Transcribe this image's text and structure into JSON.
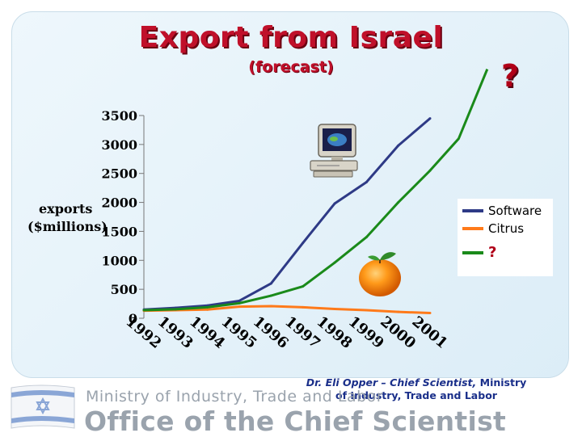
{
  "title": "Export from Israel",
  "subtitle": "(forecast)",
  "question_mark": "?",
  "ylabel_line1": "exports",
  "ylabel_line2": "($millions)",
  "credit": {
    "name": "Dr.  Eli  Opper – Chief Scientist,",
    "rest1": " Ministry",
    "line2": "of Industry, Trade and Labor"
  },
  "ministry_banner": {
    "line1": "Ministry of Industry, Trade and Labor",
    "line2": "Office of the Chief Scientist"
  },
  "icons": [
    "israel-flag-icon",
    "computer-icon",
    "orange-icon"
  ],
  "chart_data": {
    "type": "line",
    "title": "Export from Israel",
    "subtitle": "(forecast)",
    "ylabel": "exports ($millions)",
    "categories": [
      "1992",
      "1993",
      "1994",
      "1995",
      "1996",
      "1997",
      "1998",
      "1999",
      "2000",
      "2001"
    ],
    "yticks": [
      0,
      500,
      1000,
      1500,
      2000,
      2500,
      3000,
      3500
    ],
    "ylim": [
      0,
      3500
    ],
    "legend_position": "right",
    "series": [
      {
        "name": "Software",
        "color": "#2e3a86",
        "values": [
          150,
          180,
          220,
          300,
          600,
          1300,
          1980,
          2350,
          2980,
          3450
        ]
      },
      {
        "name": "Citrus",
        "color": "#ff7a1a",
        "values": [
          130,
          140,
          150,
          200,
          210,
          190,
          160,
          140,
          110,
          90
        ]
      },
      {
        "name": "?",
        "color": "#1a8a1a",
        "values": [
          140,
          155,
          190,
          260,
          390,
          550,
          960,
          1400,
          2000,
          2550
        ],
        "extension": [
          3100,
          4300
        ]
      }
    ]
  }
}
